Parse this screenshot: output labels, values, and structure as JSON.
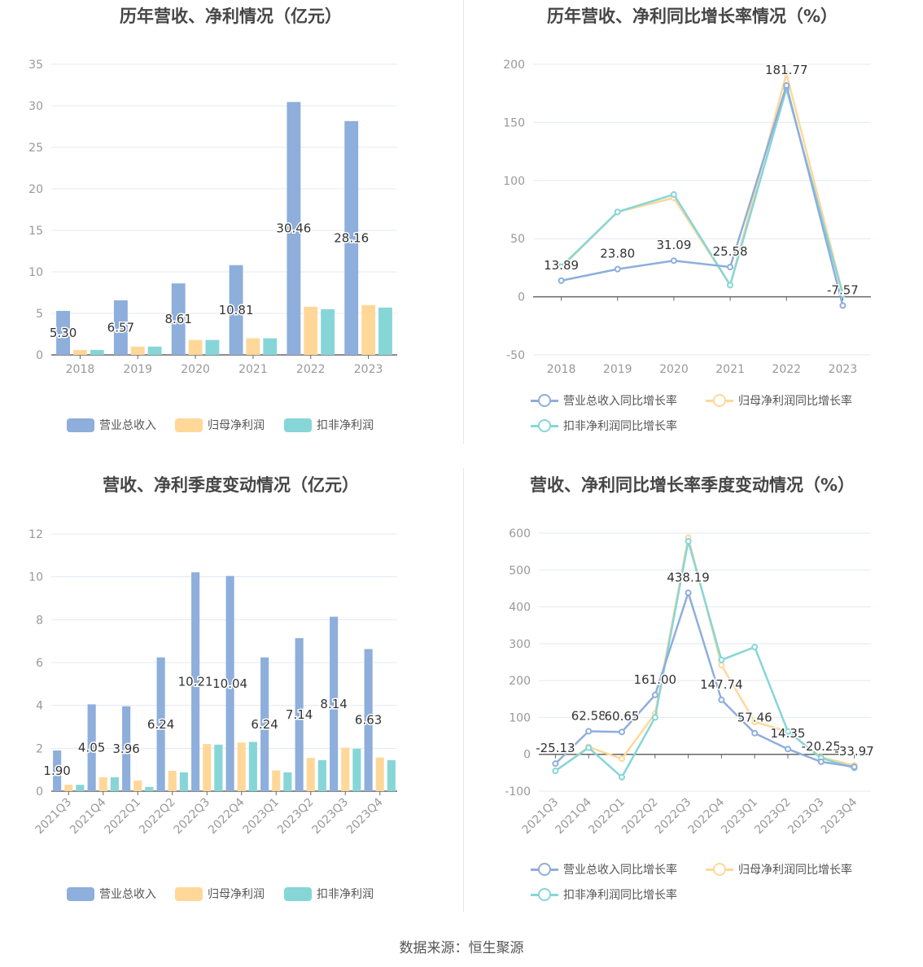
{
  "colors": {
    "revenue": "#8eaedb",
    "net_profit": "#ffd899",
    "deducted_profit": "#86d6d8",
    "grid": "#e3e8f5",
    "axis": "#666666",
    "label": "#333333",
    "tick": "#999999"
  },
  "footer": "数据来源：恒生聚源",
  "chart_data": [
    {
      "type": "bar",
      "title": "历年营收、净利情况（亿元）",
      "categories": [
        "2018",
        "2019",
        "2020",
        "2021",
        "2022",
        "2023"
      ],
      "ylim": [
        0,
        35
      ],
      "yticks": [
        "0",
        "5",
        "10",
        "15",
        "20",
        "25",
        "30",
        "35"
      ],
      "grid": true,
      "legend": "bottom",
      "series": [
        {
          "name": "营业总收入",
          "values": [
            5.3,
            6.57,
            8.61,
            10.81,
            30.46,
            28.16
          ],
          "labels": [
            "5.30",
            "6.57",
            "8.61",
            "10.81",
            "30.46",
            "28.16"
          ]
        },
        {
          "name": "归母净利润",
          "values": [
            0.6,
            1.0,
            1.8,
            2.0,
            5.8,
            6.0
          ]
        },
        {
          "name": "扣非净利润",
          "values": [
            0.6,
            1.0,
            1.8,
            2.0,
            5.5,
            5.7
          ]
        }
      ]
    },
    {
      "type": "line",
      "title": "历年营收、净利同比增长率情况（%）",
      "categories": [
        "2018",
        "2019",
        "2020",
        "2021",
        "2022",
        "2023"
      ],
      "ylim": [
        -50,
        200
      ],
      "yticks": [
        "-50",
        "0",
        "50",
        "100",
        "150",
        "200"
      ],
      "grid": true,
      "legend": "bottom",
      "series": [
        {
          "name": "营业总收入同比增长率",
          "values": [
            13.89,
            23.8,
            31.09,
            25.58,
            181.77,
            -7.57
          ],
          "labels": [
            "13.89",
            "23.80",
            "31.09",
            "25.58",
            "181.77",
            "-7.57"
          ]
        },
        {
          "name": "归母净利润同比增长率",
          "values": [
            25,
            73,
            85,
            10,
            192,
            3
          ]
        },
        {
          "name": "扣非净利润同比增长率",
          "values": [
            26,
            73,
            88,
            10,
            179,
            2
          ]
        }
      ]
    },
    {
      "type": "bar",
      "title": "营收、净利季度变动情况（亿元）",
      "categories": [
        "2021Q3",
        "2021Q4",
        "2022Q1",
        "2022Q2",
        "2022Q3",
        "2022Q4",
        "2023Q1",
        "2023Q2",
        "2023Q3",
        "2023Q4"
      ],
      "ylim": [
        0,
        12
      ],
      "yticks": [
        "0",
        "2",
        "4",
        "6",
        "8",
        "10",
        "12"
      ],
      "grid": true,
      "legend": "bottom",
      "series": [
        {
          "name": "营业总收入",
          "values": [
            1.9,
            4.05,
            3.96,
            6.24,
            10.21,
            10.04,
            6.24,
            7.14,
            8.14,
            6.63
          ],
          "labels": [
            "1.90",
            "4.05",
            "3.96",
            "6.24",
            "10.21",
            "10.04",
            "6.24",
            "7.14",
            "8.14",
            "6.63"
          ]
        },
        {
          "name": "归母净利润",
          "values": [
            0.3,
            0.65,
            0.5,
            0.95,
            2.2,
            2.27,
            0.97,
            1.55,
            2.03,
            1.57
          ]
        },
        {
          "name": "扣非净利润",
          "values": [
            0.3,
            0.65,
            0.2,
            0.88,
            2.17,
            2.3,
            0.88,
            1.45,
            1.98,
            1.45
          ]
        }
      ]
    },
    {
      "type": "line",
      "title": "营收、净利同比增长率季度变动情况（%）",
      "categories": [
        "2021Q3",
        "2021Q4",
        "2022Q1",
        "2022Q2",
        "2022Q3",
        "2022Q4",
        "2023Q1",
        "2023Q2",
        "2023Q3",
        "2023Q4"
      ],
      "ylim": [
        -100,
        600
      ],
      "yticks": [
        "-100",
        "0",
        "100",
        "200",
        "300",
        "400",
        "500",
        "600"
      ],
      "grid": true,
      "legend": "bottom",
      "series": [
        {
          "name": "营业总收入同比增长率",
          "values": [
            -25.13,
            62.58,
            60.65,
            161.0,
            438.19,
            147.74,
            57.46,
            14.35,
            -20.25,
            -33.97
          ],
          "labels": [
            "-25.13",
            "62.58",
            "60.65",
            "161.00",
            "438.19",
            "147.74",
            "57.46",
            "14.35",
            "-20.25",
            "-33.97"
          ]
        },
        {
          "name": "归母净利润同比增长率",
          "values": [
            -45,
            20,
            -12,
            110,
            588,
            242,
            88,
            62,
            -8,
            -30
          ]
        },
        {
          "name": "扣非净利润同比增长率",
          "values": [
            -45,
            18,
            -62,
            100,
            578,
            256,
            291,
            62,
            -10,
            -37
          ]
        }
      ]
    }
  ]
}
